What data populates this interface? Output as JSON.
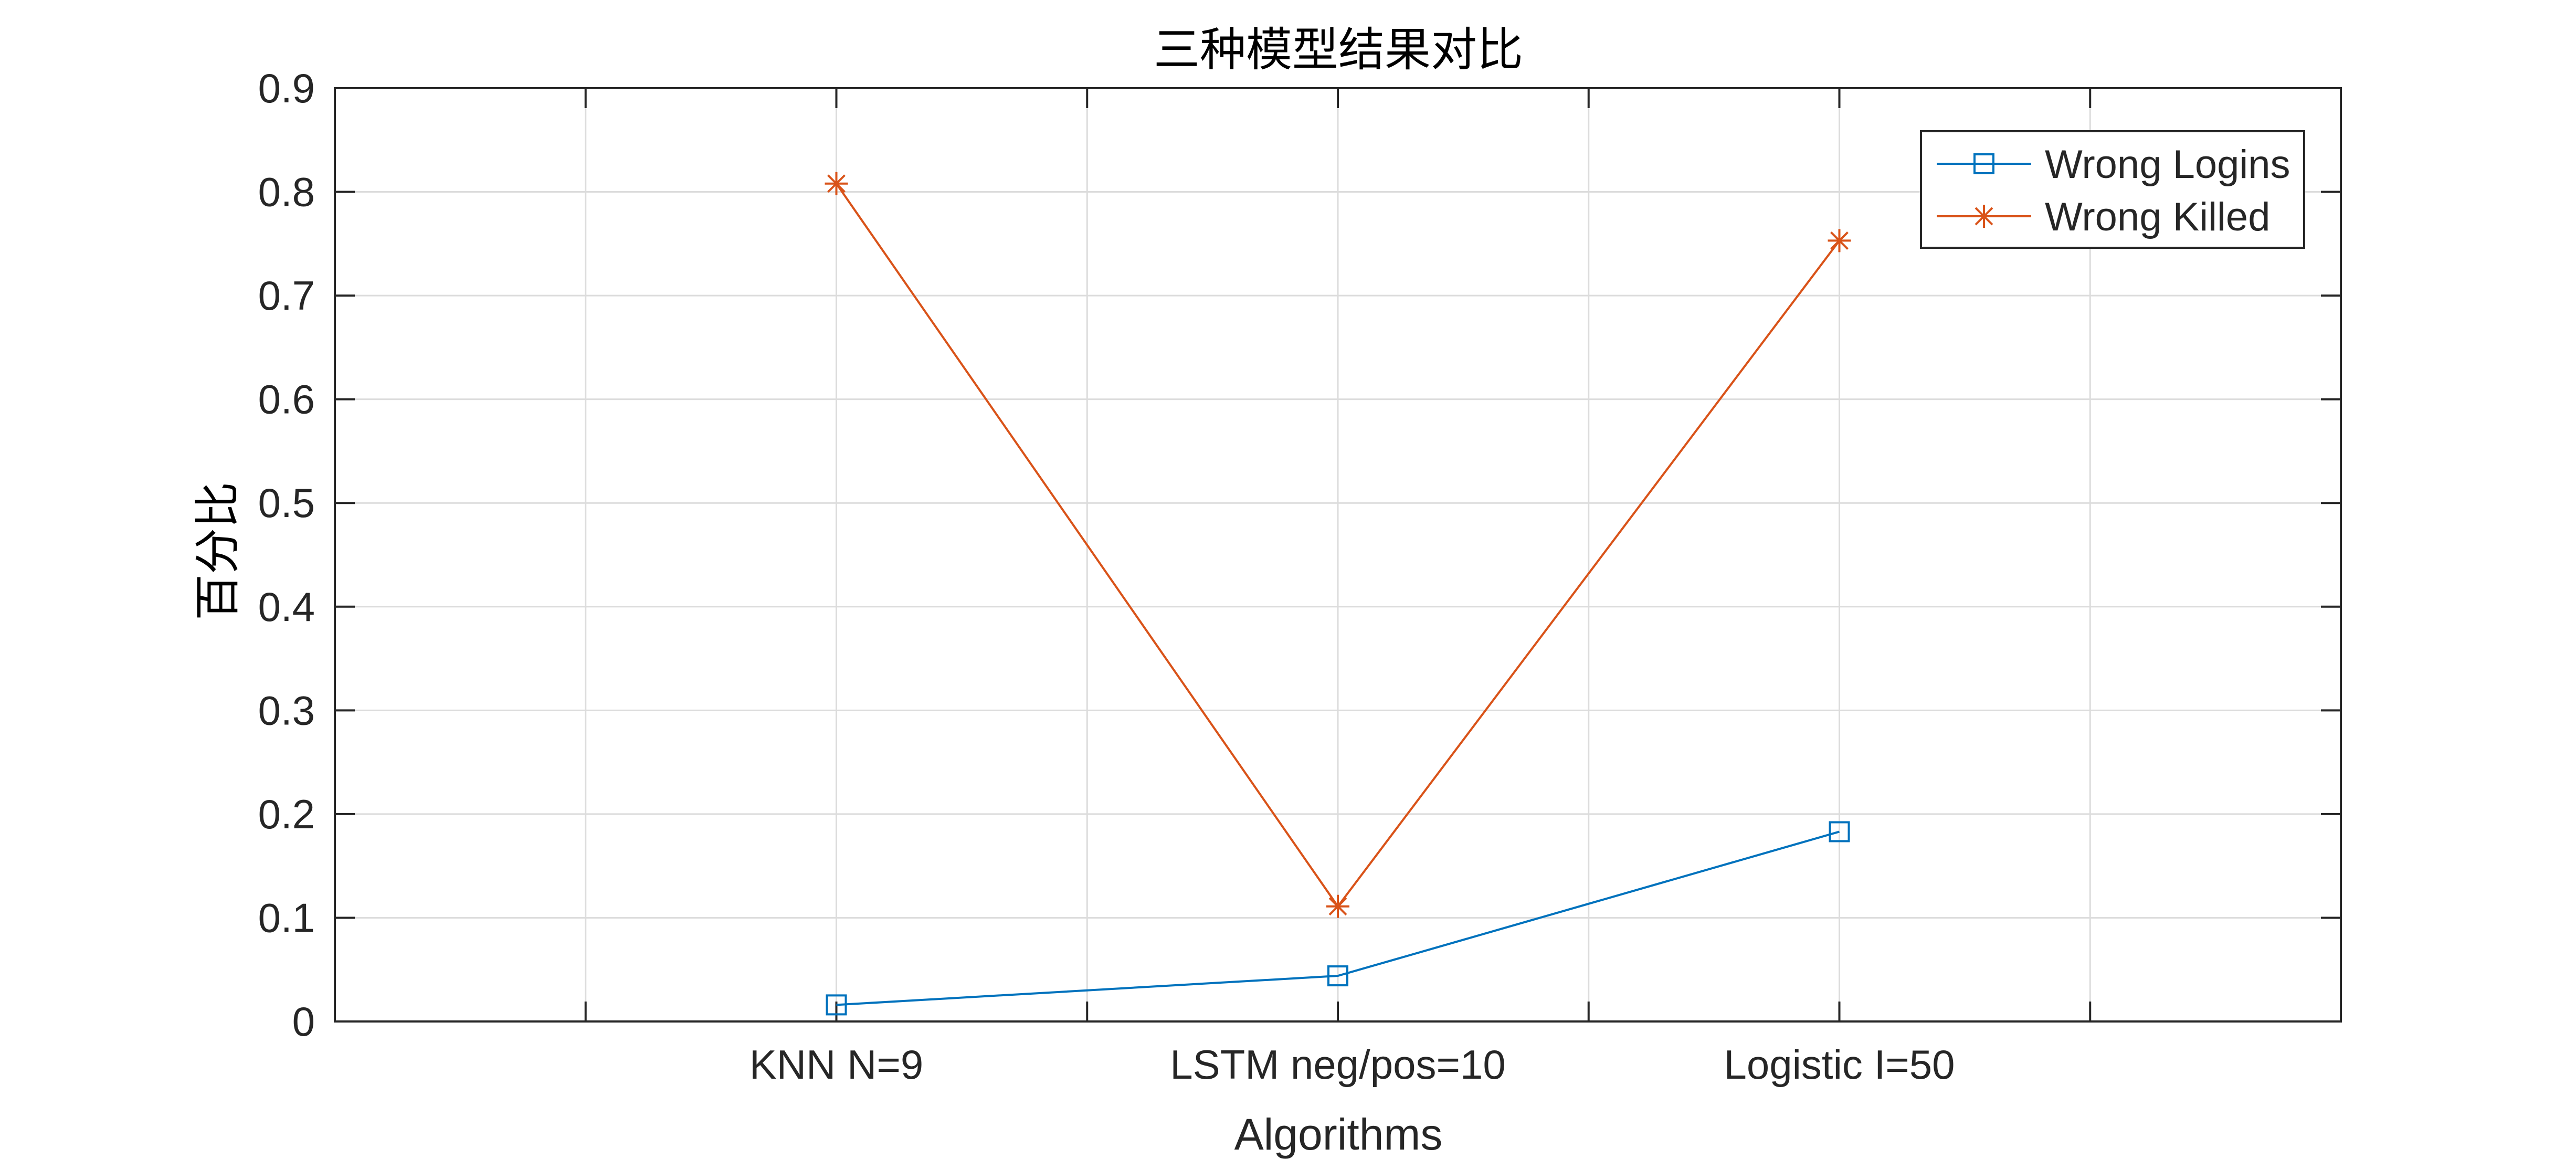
{
  "chart_data": {
    "type": "line",
    "title": "三种模型结果对比",
    "xlabel": "Algorithms",
    "ylabel": "百分比",
    "x": [
      1,
      2,
      3
    ],
    "xlim": [
      0,
      4
    ],
    "x_ticks": [
      0.5,
      1,
      1.5,
      2,
      2.5,
      3,
      3.5
    ],
    "x_tick_labels": [
      "",
      "KNN N=9",
      "",
      "LSTM neg/pos=10",
      "",
      "Logistic I=50",
      ""
    ],
    "ylim": [
      0,
      0.9
    ],
    "y_ticks": [
      0,
      0.1,
      0.2,
      0.3,
      0.4,
      0.5,
      0.6,
      0.7,
      0.8,
      0.9
    ],
    "y_tick_labels": [
      "0",
      "0.1",
      "0.2",
      "0.3",
      "0.4",
      "0.5",
      "0.6",
      "0.7",
      "0.8",
      "0.9"
    ],
    "grid": true,
    "legend_position": "top-right",
    "series": [
      {
        "name": "Wrong Logins",
        "values": [
          0.016,
          0.044,
          0.183
        ],
        "color": "#0072BD",
        "marker": "square"
      },
      {
        "name": "Wrong Killed",
        "values": [
          0.808,
          0.111,
          0.753
        ],
        "color": "#D95319",
        "marker": "asterisk"
      }
    ]
  }
}
